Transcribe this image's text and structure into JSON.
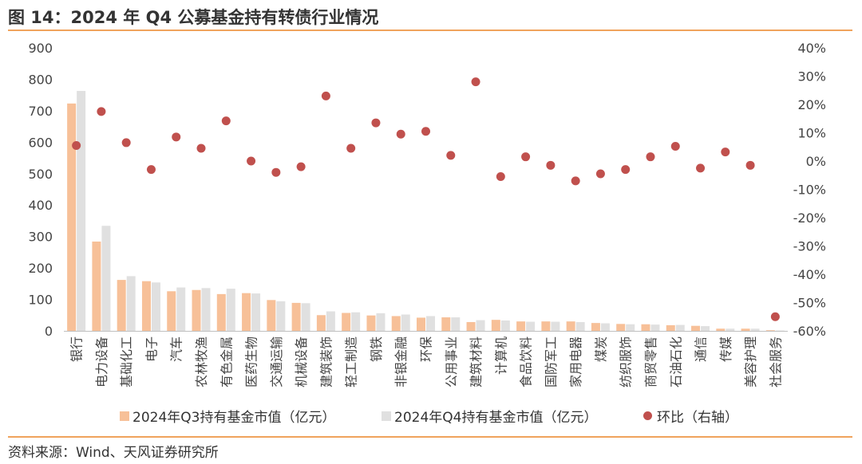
{
  "page": {
    "title": "图 14：2024 年 Q4 公募基金持有转债行业情况",
    "source": "资料来源：Wind、天风证券研究所"
  },
  "colors": {
    "rule": "#f0a35c",
    "q3_bar": "#f7c098",
    "q4_bar": "#e0e0e0",
    "ratio_dot": "#c0504d"
  },
  "chart_data": {
    "type": "bar",
    "categories": [
      "银行",
      "电力设备",
      "基础化工",
      "电子",
      "汽车",
      "农林牧渔",
      "有色金属",
      "医药生物",
      "交通运输",
      "机械设备",
      "建筑装饰",
      "轻工制造",
      "钢铁",
      "非银金融",
      "环保",
      "公用事业",
      "建筑材料",
      "计算机",
      "食品饮料",
      "国防军工",
      "家用电器",
      "煤炭",
      "纺织服饰",
      "商贸零售",
      "石油石化",
      "通信",
      "传媒",
      "美容护理",
      "社会服务"
    ],
    "series": [
      {
        "name": "2024年Q3持有基金市值（亿元）",
        "type": "bar",
        "axis": "left",
        "values": [
          723,
          284,
          162,
          158,
          126,
          130,
          117,
          120,
          98,
          89,
          50,
          57,
          49,
          47,
          42,
          43,
          28,
          35,
          30,
          30,
          30,
          25,
          22,
          21,
          18,
          16,
          7,
          7,
          2
        ]
      },
      {
        "name": "2024年Q4持有基金市值（亿元）",
        "type": "bar",
        "axis": "left",
        "values": [
          763,
          334,
          174,
          154,
          138,
          136,
          134,
          119,
          94,
          88,
          62,
          59,
          56,
          52,
          47,
          43,
          34,
          33,
          29,
          29,
          28,
          24,
          21,
          20,
          19,
          15,
          7,
          7,
          1
        ]
      },
      {
        "name": "环比（右轴）",
        "type": "scatter",
        "axis": "right",
        "values": [
          5.5,
          17.5,
          6.5,
          -3,
          8.5,
          4.5,
          14.2,
          0,
          -4,
          -2,
          23,
          4.5,
          13.5,
          9.5,
          10.5,
          2,
          28,
          -5.5,
          1.5,
          -1.5,
          -7,
          -4.5,
          -3,
          1.5,
          5.2,
          -2.5,
          3.2,
          -1.5,
          -55
        ]
      }
    ],
    "y_left": {
      "ticks": [
        "900",
        "800",
        "700",
        "600",
        "500",
        "400",
        "300",
        "200",
        "100",
        "0"
      ],
      "min": 0,
      "max": 900,
      "step": 100
    },
    "y_right": {
      "ticks": [
        "40%",
        "30%",
        "20%",
        "10%",
        "0%",
        "-10%",
        "-20%",
        "-30%",
        "-40%",
        "-50%",
        "-60%"
      ],
      "min": -60,
      "max": 40,
      "step": 10
    },
    "grid": false,
    "legend_position": "bottom"
  }
}
